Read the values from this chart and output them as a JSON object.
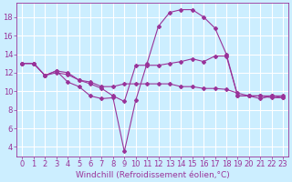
{
  "background_color": "#cceeff",
  "grid_color": "#ffffff",
  "line_color": "#993399",
  "xlabel": "Windchill (Refroidissement éolien,°C)",
  "xlabel_fontsize": 6.5,
  "tick_fontsize": 6,
  "xlim": [
    -0.5,
    23.5
  ],
  "ylim": [
    3.0,
    19.5
  ],
  "yticks": [
    4,
    6,
    8,
    10,
    12,
    14,
    16,
    18
  ],
  "xticks": [
    0,
    1,
    2,
    3,
    4,
    5,
    6,
    7,
    8,
    9,
    10,
    11,
    12,
    13,
    14,
    15,
    16,
    17,
    18,
    19,
    20,
    21,
    22,
    23
  ],
  "line1_x": [
    0,
    1,
    2,
    3,
    4,
    5,
    6,
    7,
    8,
    9,
    10,
    11,
    12,
    13,
    14,
    15,
    16,
    17,
    18,
    19,
    20,
    21,
    22,
    23
  ],
  "line1_y": [
    13,
    13,
    11.7,
    12.2,
    11,
    10.5,
    9.5,
    9.2,
    9.3,
    3.5,
    9,
    13,
    17,
    18.5,
    18.8,
    18.8,
    18,
    16.8,
    14,
    9.5,
    9.5,
    9.2,
    9.5,
    9.5
  ],
  "line2_x": [
    0,
    1,
    2,
    3,
    4,
    5,
    6,
    7,
    8,
    9,
    10,
    11,
    12,
    13,
    14,
    15,
    16,
    17,
    18,
    19,
    20,
    21,
    22,
    23
  ],
  "line2_y": [
    13,
    13,
    11.7,
    12.2,
    12,
    11.2,
    10.8,
    10.3,
    9.5,
    8.9,
    12.8,
    12.8,
    12.8,
    13.0,
    13.2,
    13.5,
    13.2,
    13.8,
    13.8,
    9.5,
    9.5,
    9.5,
    9.5,
    9.3
  ],
  "line3_x": [
    0,
    1,
    2,
    3,
    4,
    5,
    6,
    7,
    8,
    9,
    10,
    11,
    12,
    13,
    14,
    15,
    16,
    17,
    18,
    19,
    20,
    21,
    22,
    23
  ],
  "line3_y": [
    13,
    13,
    11.7,
    12.0,
    11.8,
    11.2,
    11.0,
    10.5,
    10.5,
    10.8,
    10.8,
    10.8,
    10.8,
    10.8,
    10.5,
    10.5,
    10.3,
    10.3,
    10.2,
    9.8,
    9.5,
    9.5,
    9.3,
    9.3
  ]
}
